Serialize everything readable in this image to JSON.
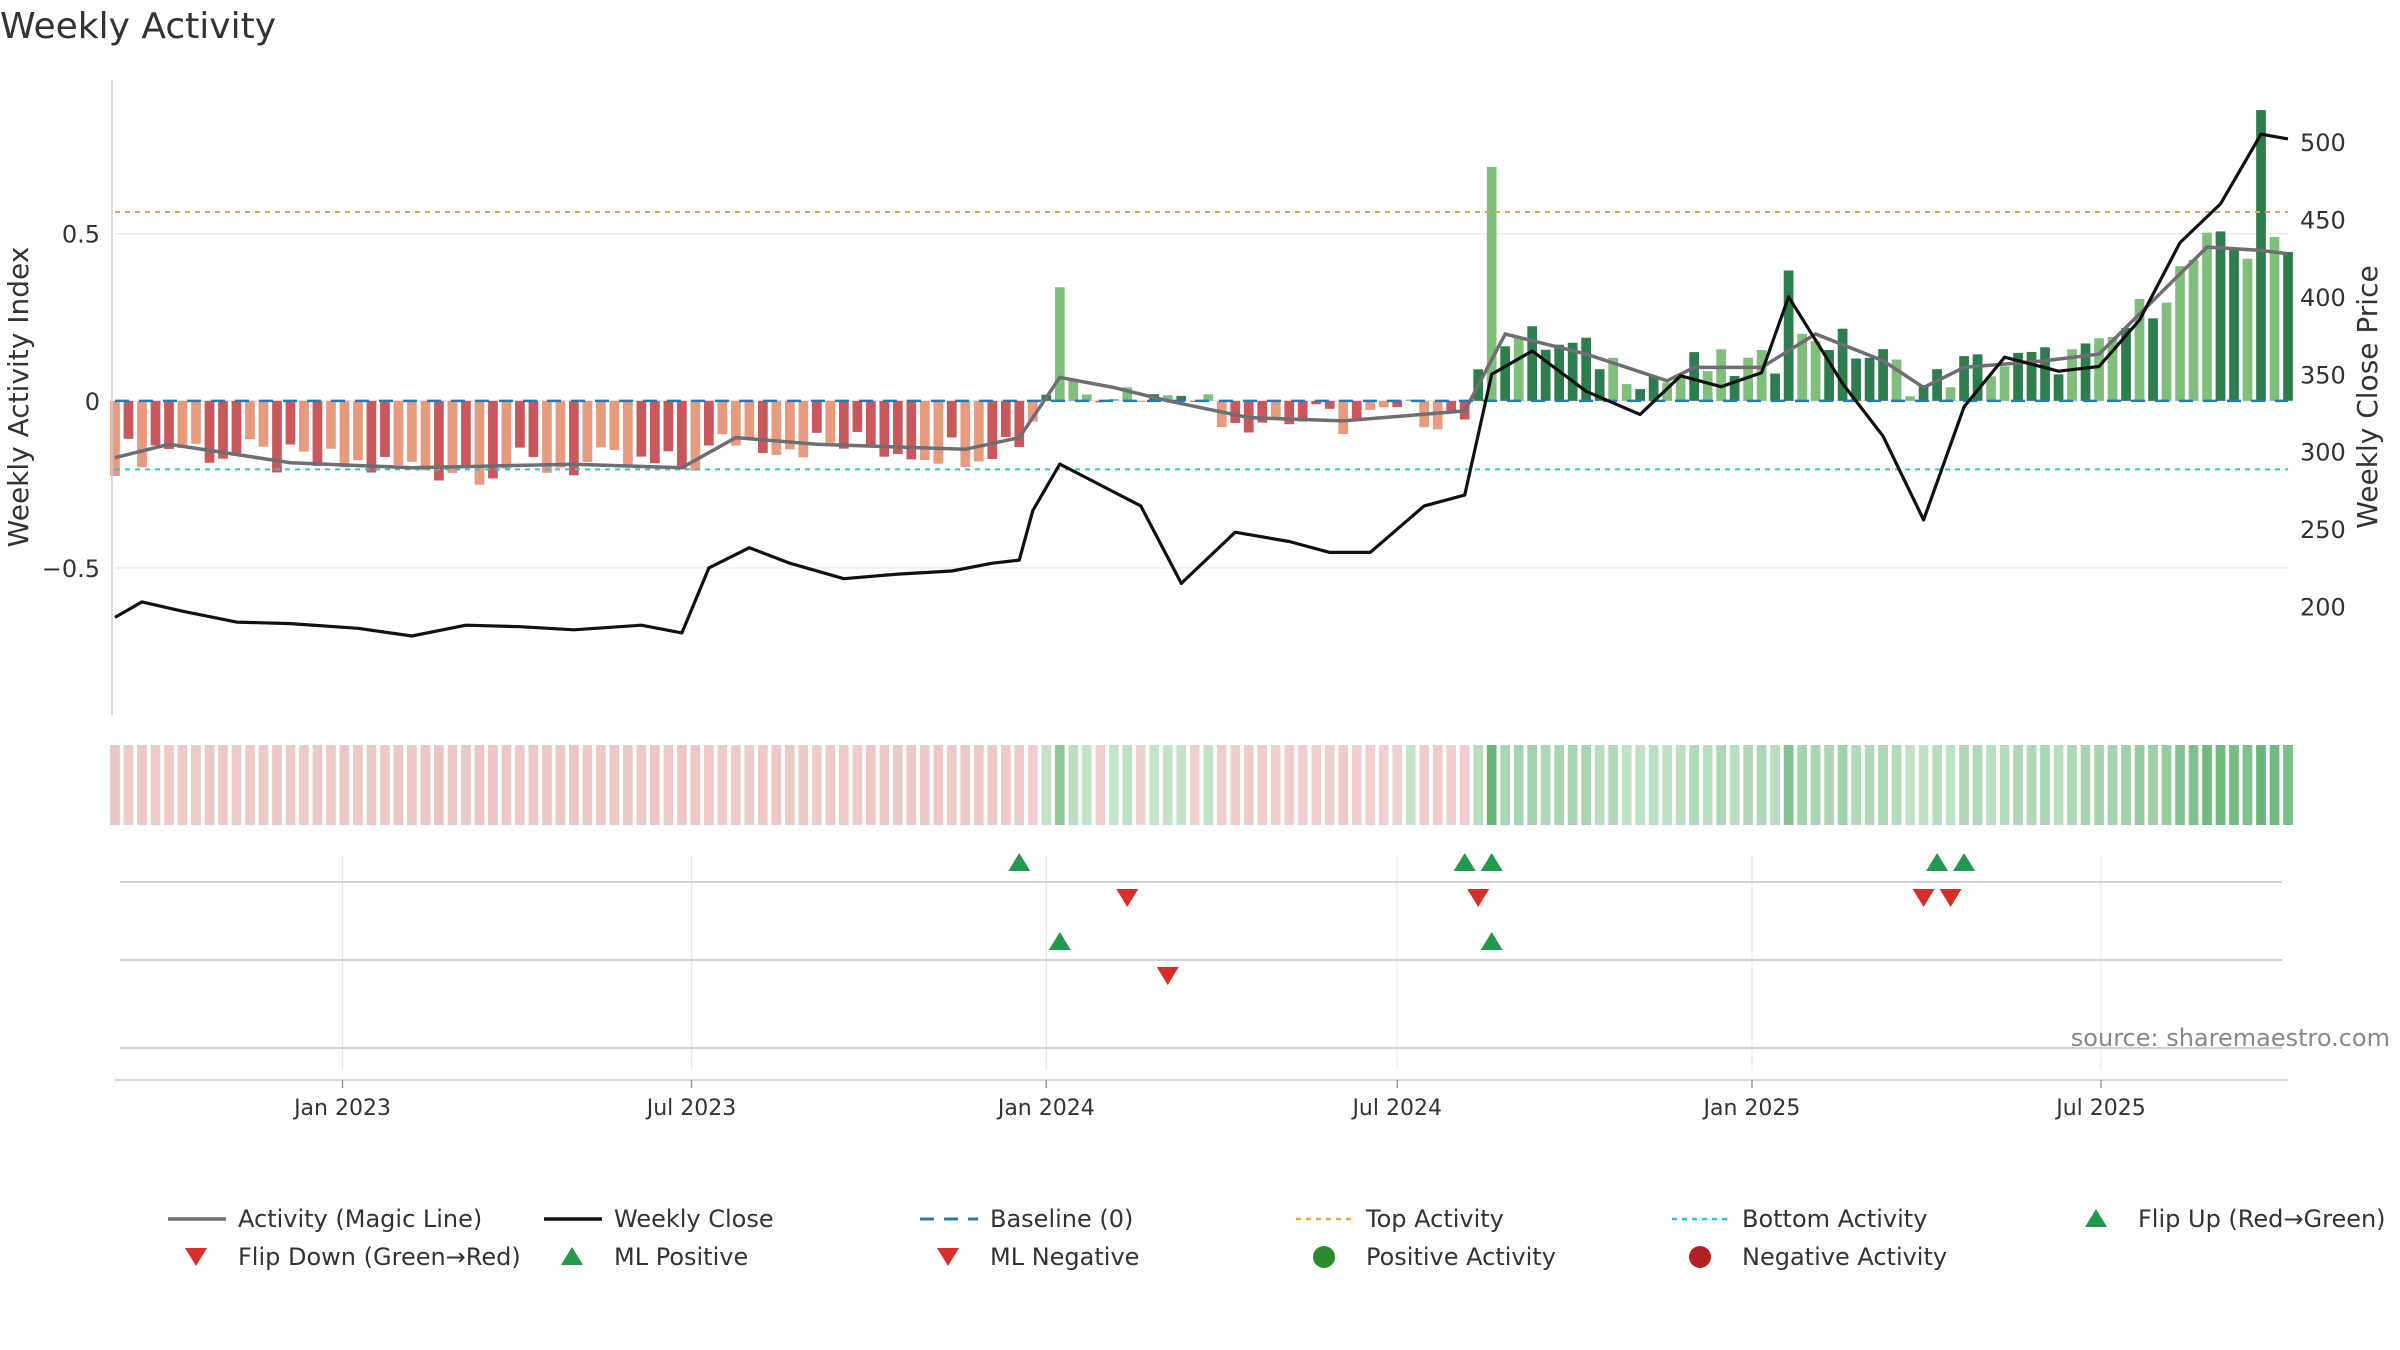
{
  "chart_data": {
    "type": "bar",
    "title": "Weekly Activity",
    "ylabel": "Weekly Activity Index",
    "y2label": "Weekly Close Price",
    "ylim": [
      -0.94,
      0.96
    ],
    "y2lim": [
      130,
      540
    ],
    "yticks": [
      0.5,
      0,
      -0.5
    ],
    "ytick_labels": [
      "0.5",
      "0",
      "−0.5"
    ],
    "y2ticks": [
      500,
      450,
      400,
      350,
      300,
      250,
      200
    ],
    "x_start": "2022-09-05",
    "x_end": "2025-10-06",
    "x_ticks": [
      {
        "date": "2023-01-01",
        "label": "Jan 2023"
      },
      {
        "date": "2023-07-01",
        "label": "Jul 2023"
      },
      {
        "date": "2024-01-01",
        "label": "Jan 2024"
      },
      {
        "date": "2024-07-01",
        "label": "Jul 2024"
      },
      {
        "date": "2025-01-01",
        "label": "Jan 2025"
      },
      {
        "date": "2025-07-01",
        "label": "Jul 2025"
      }
    ],
    "top_activity": 0.565,
    "bottom_activity": -0.205,
    "baseline": 0,
    "grid": true,
    "series": [
      {
        "name": "Activity (Magic Line)",
        "type": "line",
        "color": "#6e6e73",
        "points": [
          [
            "2022-09-05",
            -0.17
          ],
          [
            "2022-10-03",
            -0.13
          ],
          [
            "2022-12-05",
            -0.185
          ],
          [
            "2023-02-06",
            -0.2
          ],
          [
            "2023-05-01",
            -0.19
          ],
          [
            "2023-06-26",
            -0.2
          ],
          [
            "2023-07-24",
            -0.11
          ],
          [
            "2023-09-04",
            -0.13
          ],
          [
            "2023-11-20",
            -0.145
          ],
          [
            "2023-12-18",
            -0.11
          ],
          [
            "2024-01-08",
            0.07
          ],
          [
            "2024-02-05",
            0.04
          ],
          [
            "2024-03-04",
            0.0
          ],
          [
            "2024-04-15",
            -0.05
          ],
          [
            "2024-06-03",
            -0.06
          ],
          [
            "2024-08-05",
            -0.03
          ],
          [
            "2024-08-26",
            0.2
          ],
          [
            "2024-10-07",
            0.14
          ],
          [
            "2024-11-18",
            0.06
          ],
          [
            "2024-12-02",
            0.1
          ],
          [
            "2025-01-06",
            0.1
          ],
          [
            "2025-02-03",
            0.2
          ],
          [
            "2025-03-10",
            0.12
          ],
          [
            "2025-03-31",
            0.04
          ],
          [
            "2025-04-21",
            0.1
          ],
          [
            "2025-06-02",
            0.12
          ],
          [
            "2025-06-30",
            0.14
          ],
          [
            "2025-07-28",
            0.3
          ],
          [
            "2025-08-25",
            0.46
          ],
          [
            "2025-09-22",
            0.45
          ],
          [
            "2025-10-06",
            0.44
          ]
        ]
      },
      {
        "name": "Weekly Close",
        "type": "line",
        "color": "#111111",
        "points": [
          [
            "2022-09-05",
            193
          ],
          [
            "2022-09-19",
            203
          ],
          [
            "2022-10-10",
            197
          ],
          [
            "2022-11-07",
            190
          ],
          [
            "2022-12-05",
            189
          ],
          [
            "2023-01-09",
            186
          ],
          [
            "2023-02-06",
            181
          ],
          [
            "2023-03-06",
            188
          ],
          [
            "2023-04-03",
            187
          ],
          [
            "2023-05-01",
            185
          ],
          [
            "2023-06-05",
            188
          ],
          [
            "2023-06-26",
            183
          ],
          [
            "2023-07-10",
            225
          ],
          [
            "2023-07-31",
            238
          ],
          [
            "2023-08-21",
            228
          ],
          [
            "2023-09-18",
            218
          ],
          [
            "2023-10-16",
            221
          ],
          [
            "2023-11-13",
            223
          ],
          [
            "2023-12-04",
            228
          ],
          [
            "2023-12-18",
            230
          ],
          [
            "2023-12-25",
            262
          ],
          [
            "2024-01-08",
            292
          ],
          [
            "2024-01-22",
            283
          ],
          [
            "2024-02-19",
            265
          ],
          [
            "2024-03-11",
            215
          ],
          [
            "2024-04-08",
            248
          ],
          [
            "2024-05-06",
            242
          ],
          [
            "2024-05-27",
            235
          ],
          [
            "2024-06-17",
            235
          ],
          [
            "2024-07-15",
            265
          ],
          [
            "2024-08-05",
            272
          ],
          [
            "2024-08-19",
            350
          ],
          [
            "2024-09-09",
            365
          ],
          [
            "2024-10-07",
            339
          ],
          [
            "2024-11-04",
            324
          ],
          [
            "2024-11-25",
            349
          ],
          [
            "2024-12-16",
            342
          ],
          [
            "2025-01-06",
            351
          ],
          [
            "2025-01-20",
            400
          ],
          [
            "2025-02-17",
            344
          ],
          [
            "2025-03-10",
            310
          ],
          [
            "2025-03-31",
            256
          ],
          [
            "2025-04-21",
            329
          ],
          [
            "2025-05-12",
            361
          ],
          [
            "2025-06-09",
            352
          ],
          [
            "2025-06-30",
            355
          ],
          [
            "2025-07-21",
            385
          ],
          [
            "2025-08-11",
            435
          ],
          [
            "2025-09-01",
            460
          ],
          [
            "2025-09-22",
            505
          ],
          [
            "2025-10-06",
            502
          ]
        ]
      }
    ],
    "bar_colors": {
      "strong_positive": "#2e7d4f",
      "weak_positive": "#7fbf7b",
      "strong_negative": "#c9585c",
      "weak_negative": "#e69b7e"
    },
    "flip_up_dates": [
      "2023-12-18",
      "2024-08-05",
      "2024-08-19",
      "2025-04-07",
      "2025-04-21"
    ],
    "flip_down_dates": [
      "2024-02-12",
      "2024-08-12",
      "2025-03-31",
      "2025-04-14"
    ],
    "ml_positive_dates": [
      "2024-01-08",
      "2024-08-19"
    ],
    "ml_negative_dates": [
      "2024-03-04"
    ],
    "legend_position": "bottom",
    "legend": [
      {
        "label": "Activity (Magic Line)",
        "symbol": "line",
        "color": "#6e6e73"
      },
      {
        "label": "Weekly Close",
        "symbol": "line",
        "color": "#111111"
      },
      {
        "label": "Baseline (0)",
        "symbol": "dash",
        "color": "#2878b5"
      },
      {
        "label": "Top Activity",
        "symbol": "dot-line",
        "color": "#e0a64f"
      },
      {
        "label": "Bottom Activity",
        "symbol": "dot-line",
        "color": "#29c7d6"
      },
      {
        "label": "Flip Up (Red→Green)",
        "symbol": "triangle-up",
        "color": "#219a4d"
      },
      {
        "label": "Flip Down (Green→Red)",
        "symbol": "triangle-down",
        "color": "#d62d2d"
      },
      {
        "label": "ML Positive",
        "symbol": "triangle-up",
        "color": "#219a4d"
      },
      {
        "label": "ML Negative",
        "symbol": "triangle-down",
        "color": "#d62d2d"
      },
      {
        "label": "Positive Activity",
        "symbol": "circle",
        "color": "#2b8a2b"
      },
      {
        "label": "Negative Activity",
        "symbol": "circle",
        "color": "#b22222"
      }
    ],
    "source": "source: sharemaestro.com"
  }
}
